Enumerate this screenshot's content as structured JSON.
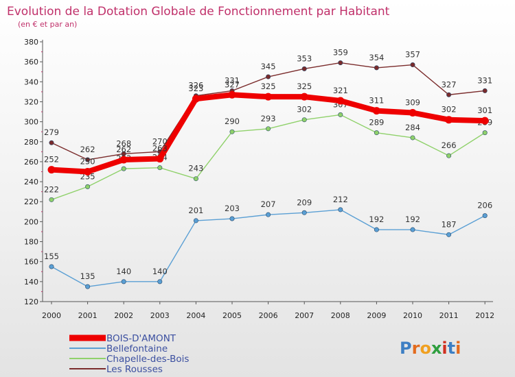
{
  "title": "Evolution de la Dotation Globale de Fonctionnement par Habitant",
  "subtitle": "(en € et par an)",
  "brand": "Proxiti",
  "chart_data": {
    "type": "line",
    "x": [
      "2000",
      "2001",
      "2002",
      "2003",
      "2004",
      "2005",
      "2006",
      "2007",
      "2008",
      "2009",
      "2010",
      "2011",
      "2012"
    ],
    "ylim": [
      120,
      380
    ],
    "yticks": [
      120,
      140,
      160,
      180,
      200,
      220,
      240,
      260,
      280,
      300,
      320,
      340,
      360,
      380
    ],
    "grid": false,
    "legend": "bottom-left",
    "series": [
      {
        "name": "Les Rousses",
        "color": "#7a2b2b",
        "values": [
          279,
          262,
          268,
          270,
          326,
          331,
          345,
          353,
          359,
          354,
          357,
          327,
          331
        ]
      },
      {
        "name": "Chapelle-des-Bois",
        "color": "#8fd16a",
        "values": [
          222,
          235,
          253,
          254,
          243,
          290,
          293,
          302,
          307,
          289,
          284,
          266,
          289
        ]
      },
      {
        "name": "Bellefontaine",
        "color": "#5a9fd4",
        "values": [
          155,
          135,
          140,
          140,
          201,
          203,
          207,
          209,
          212,
          192,
          192,
          187,
          206
        ]
      },
      {
        "name": "BOIS-D'AMONT",
        "color": "#ee0000",
        "values": [
          252,
          250,
          262,
          263,
          323,
          327,
          325,
          325,
          321,
          311,
          309,
          302,
          301
        ]
      }
    ]
  }
}
